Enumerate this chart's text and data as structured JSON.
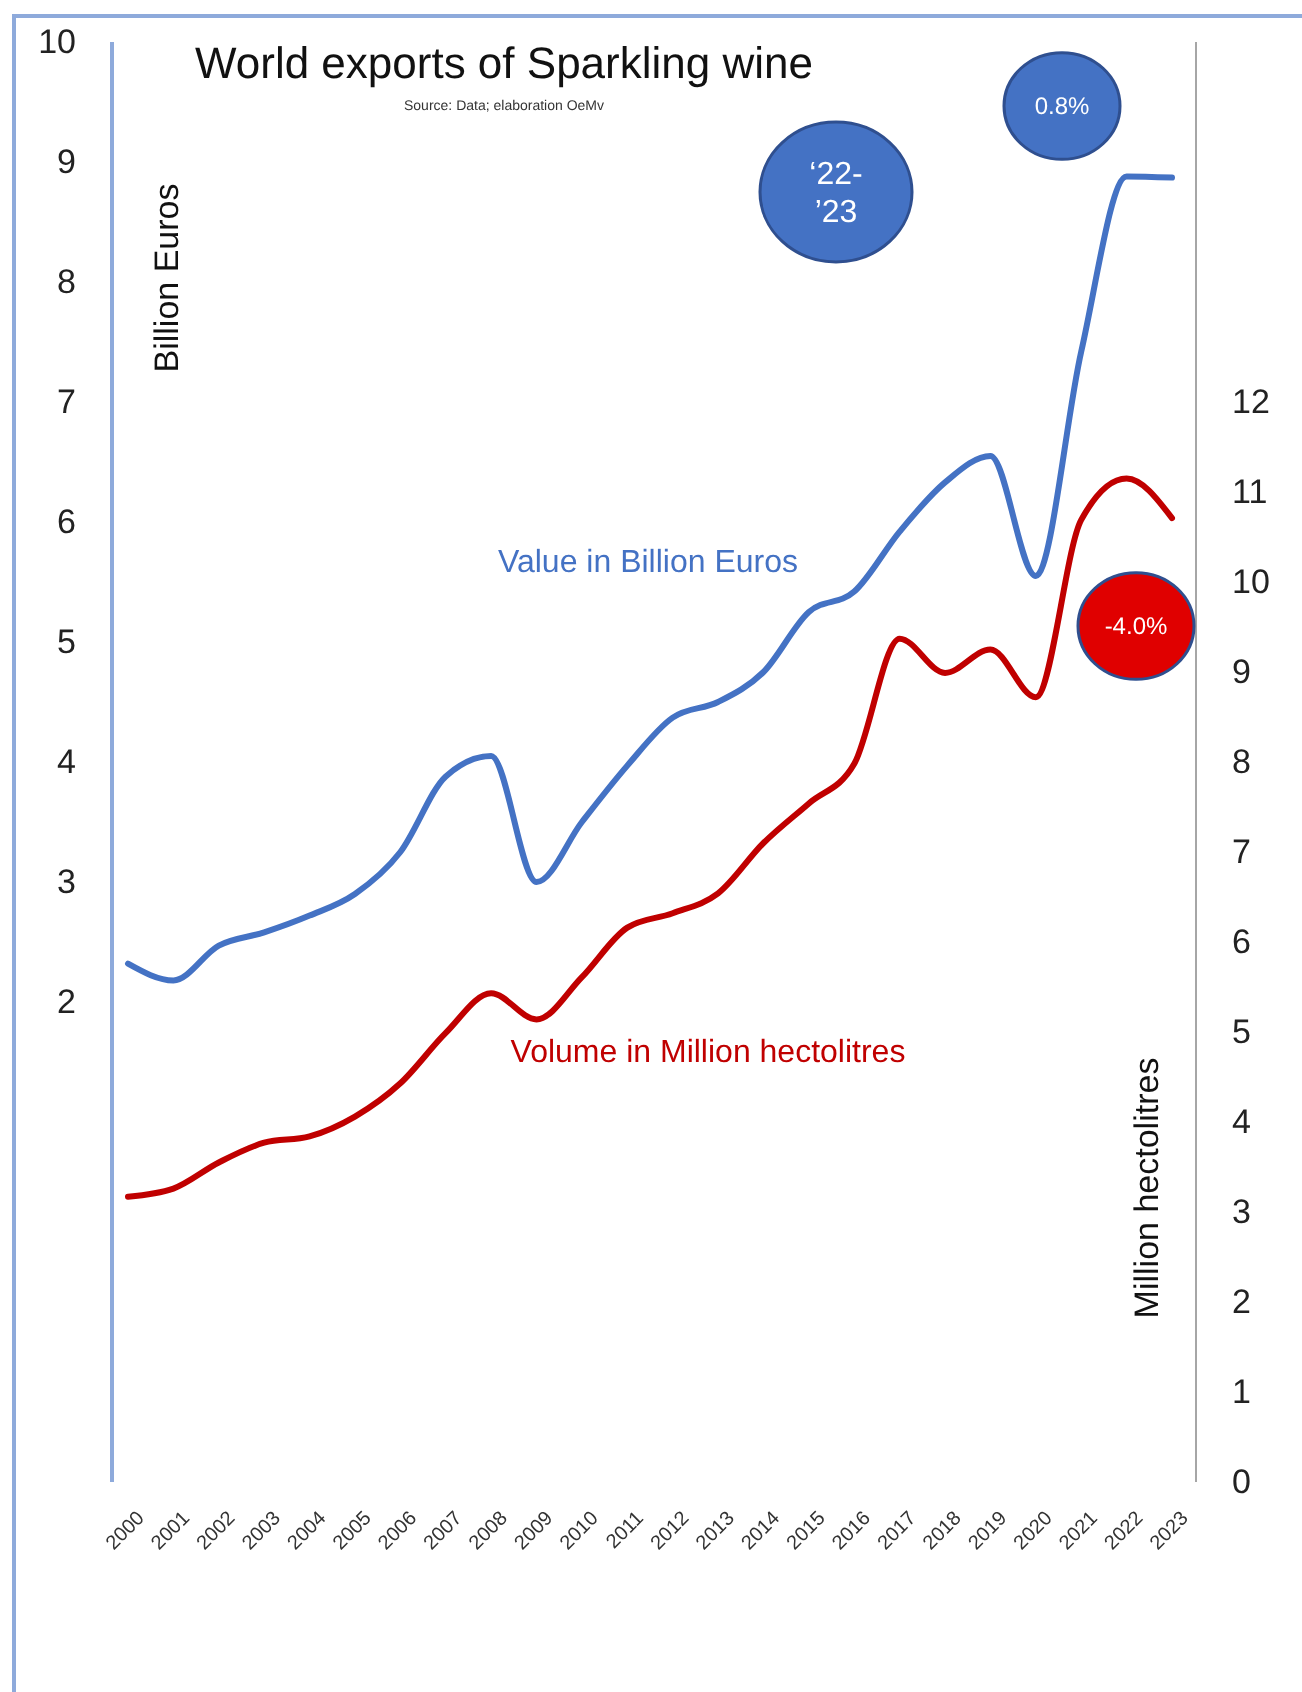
{
  "chart_data": {
    "type": "line",
    "title": "World exports of Sparkling wine",
    "subtitle": "Source: Data; elaboration OeMv",
    "ylabel": "Billion Euros",
    "y2label": "Million hectolitres",
    "categories": [
      "2000",
      "2001",
      "2002",
      "2003",
      "2004",
      "2005",
      "2006",
      "2007",
      "2008",
      "2009",
      "2010",
      "2011",
      "2012",
      "2013",
      "2014",
      "2015",
      "2016",
      "2017",
      "2018",
      "2019",
      "2020",
      "2021",
      "2022",
      "2023"
    ],
    "series": [
      {
        "name": "Value in Billion Euros",
        "color": "#4472c4",
        "values": [
          2.32,
          2.18,
          2.47,
          2.58,
          2.72,
          2.9,
          3.25,
          3.88,
          4.05,
          3.0,
          3.5,
          3.97,
          4.37,
          4.5,
          4.75,
          5.25,
          5.42,
          5.92,
          6.33,
          6.55,
          5.55,
          7.42,
          8.88,
          8.87
        ]
      },
      {
        "name": "Volume in Million hectolitres",
        "color": "#c00000",
        "axis": "y2",
        "values": [
          3.17,
          3.26,
          3.55,
          3.77,
          3.84,
          4.06,
          4.43,
          4.99,
          5.43,
          5.14,
          5.61,
          6.16,
          6.32,
          6.54,
          7.1,
          7.54,
          7.98,
          9.37,
          8.99,
          9.25,
          8.72,
          10.69,
          11.15,
          10.71
        ]
      }
    ],
    "ylim": [
      -2,
      10
    ],
    "yticks": [
      2,
      3,
      4,
      5,
      6,
      7,
      8,
      9,
      10
    ],
    "y2lim": [
      0,
      16
    ],
    "y2ticks": [
      0,
      1,
      2,
      3,
      4,
      5,
      6,
      7,
      8,
      9,
      10,
      11,
      12
    ],
    "annotations": [
      "‘22-’23",
      "0.8%",
      "-4.0%"
    ]
  }
}
